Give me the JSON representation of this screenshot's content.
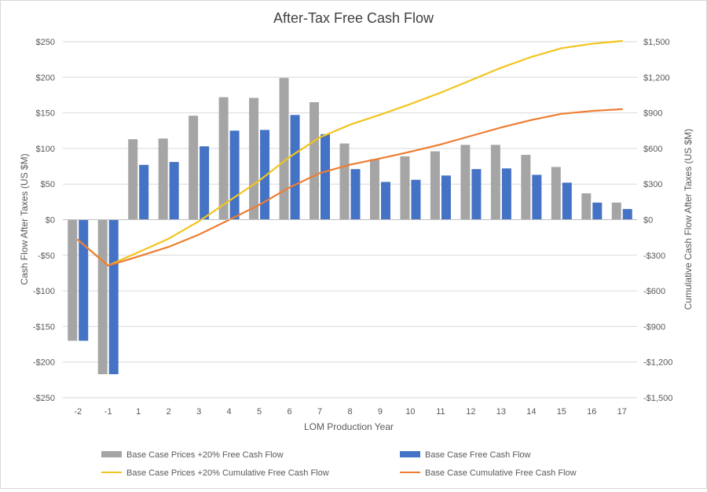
{
  "colors": {
    "gray_bar": "#a5a5a5",
    "blue_bar": "#4472c4",
    "yellow_line": "#f2c41e",
    "orange_line": "#ed7d31",
    "grid": "#d9d9d9",
    "text": "#595959"
  },
  "chart_data": {
    "type": "bar",
    "title": "After-Tax Free Cash Flow",
    "xlabel": "LOM Production Year",
    "ylabel": "Cash Flow After Taxes (US $M)",
    "y2label": "Cumulative Cash Flow After Taxes (US $M)",
    "categories": [
      "-2",
      "-1",
      "1",
      "2",
      "3",
      "4",
      "5",
      "6",
      "7",
      "8",
      "9",
      "10",
      "11",
      "12",
      "13",
      "14",
      "15",
      "16",
      "17"
    ],
    "ylim": [
      -250,
      250
    ],
    "y2lim": [
      -1500,
      1500
    ],
    "yticks": [
      250,
      200,
      150,
      100,
      50,
      0,
      -50,
      -100,
      -150,
      -200,
      -250
    ],
    "ytick_labels": [
      "$250",
      "$200",
      "$150",
      "$100",
      "$50",
      "$0",
      "-$50",
      "-$100",
      "-$150",
      "-$200",
      "-$250"
    ],
    "y2ticks": [
      1500,
      1200,
      900,
      600,
      300,
      0,
      -300,
      -600,
      -900,
      -1200,
      -1500
    ],
    "y2tick_labels": [
      "$1,500",
      "$1,200",
      "$900",
      "$600",
      "$300",
      "$0",
      "-$300",
      "-$600",
      "-$900",
      "-$1,200",
      "-$1,500"
    ],
    "grid": true,
    "legend_position": "bottom",
    "series": [
      {
        "name": "Base Case Prices +20% Free Cash Flow",
        "kind": "bar",
        "axis": "left",
        "color": "#a5a5a5",
        "values": [
          -170,
          -217,
          113,
          114,
          146,
          172,
          171,
          199,
          165,
          107,
          85,
          89,
          96,
          105,
          105,
          91,
          74,
          37,
          24
        ]
      },
      {
        "name": "Base Case Free Cash Flow",
        "kind": "bar",
        "axis": "left",
        "color": "#4472c4",
        "values": [
          -170,
          -217,
          77,
          81,
          103,
          125,
          126,
          147,
          120,
          71,
          53,
          56,
          62,
          71,
          72,
          63,
          52,
          24,
          15
        ]
      },
      {
        "name": "Base Case Prices +20% Cumulative Free Cash Flow",
        "kind": "line",
        "axis": "right",
        "color": "#f2c41e",
        "values": [
          -170,
          -387,
          -274,
          -160,
          -14,
          158,
          329,
          528,
          693,
          800,
          885,
          974,
          1070,
          1175,
          1280,
          1371,
          1445,
          1482,
          1506
        ]
      },
      {
        "name": "Base Case Cumulative Free Cash Flow",
        "kind": "line",
        "axis": "right",
        "color": "#ed7d31",
        "values": [
          -170,
          -387,
          -310,
          -229,
          -126,
          -1,
          125,
          272,
          392,
          463,
          516,
          572,
          634,
          705,
          777,
          840,
          892,
          916,
          931
        ]
      }
    ]
  }
}
